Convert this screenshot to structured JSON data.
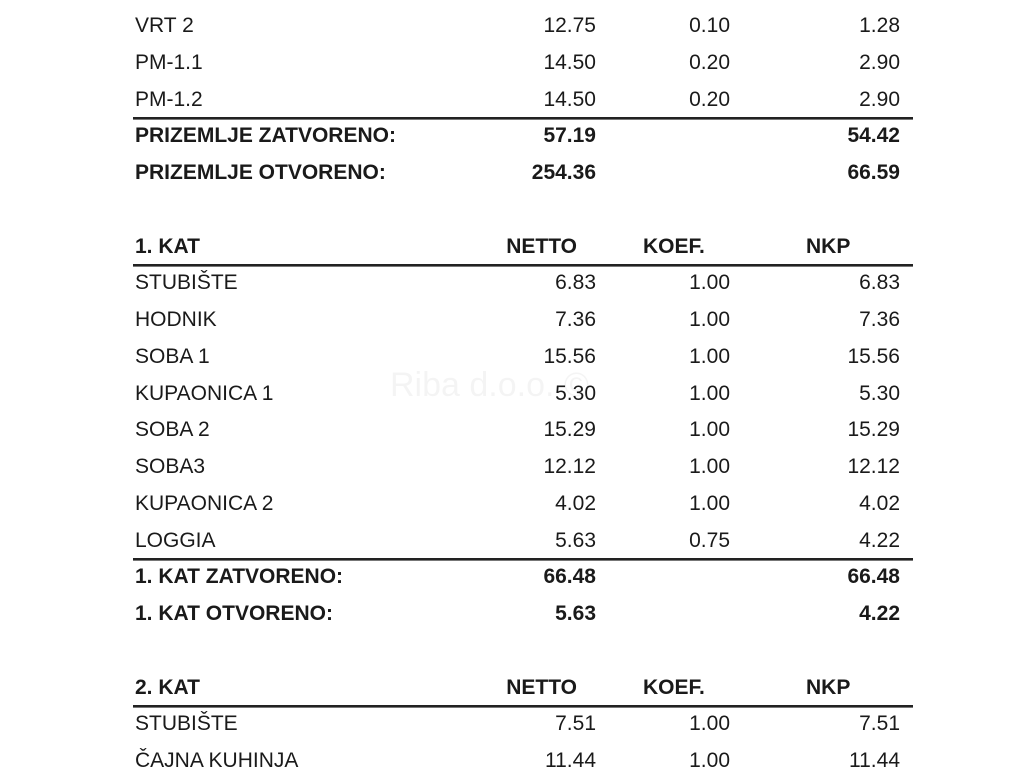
{
  "watermark": "Riba d.o.o. ©",
  "sections": [
    {
      "header": null,
      "rows": [
        {
          "name": "VRT 2",
          "netto": "12.75",
          "koef": "0.10",
          "nkp": "1.28"
        },
        {
          "name": "PM-1.1",
          "netto": "14.50",
          "koef": "0.20",
          "nkp": "2.90"
        },
        {
          "name": "PM-1.2",
          "netto": "14.50",
          "koef": "0.20",
          "nkp": "2.90"
        }
      ],
      "totals": [
        {
          "name": "PRIZEMLJE ZATVORENO:",
          "netto": "57.19",
          "nkp": "54.42"
        },
        {
          "name": "PRIZEMLJE OTVORENO:",
          "netto": "254.36",
          "nkp": "66.59"
        }
      ]
    },
    {
      "header": {
        "name": "1. KAT",
        "netto": "NETTO",
        "koef": "KOEF.",
        "nkp": "NKP"
      },
      "rows": [
        {
          "name": "STUBIŠTE",
          "netto": "6.83",
          "koef": "1.00",
          "nkp": "6.83"
        },
        {
          "name": "HODNIK",
          "netto": "7.36",
          "koef": "1.00",
          "nkp": "7.36"
        },
        {
          "name": "SOBA 1",
          "netto": "15.56",
          "koef": "1.00",
          "nkp": "15.56"
        },
        {
          "name": "KUPAONICA 1",
          "netto": "5.30",
          "koef": "1.00",
          "nkp": "5.30"
        },
        {
          "name": "SOBA 2",
          "netto": "15.29",
          "koef": "1.00",
          "nkp": "15.29"
        },
        {
          "name": "SOBA3",
          "netto": "12.12",
          "koef": "1.00",
          "nkp": "12.12"
        },
        {
          "name": "KUPAONICA 2",
          "netto": "4.02",
          "koef": "1.00",
          "nkp": "4.02"
        },
        {
          "name": "LOGGIA",
          "netto": "5.63",
          "koef": "0.75",
          "nkp": "4.22"
        }
      ],
      "totals": [
        {
          "name": "1. KAT ZATVORENO:",
          "netto": "66.48",
          "nkp": "66.48"
        },
        {
          "name": "1. KAT OTVORENO:",
          "netto": "5.63",
          "nkp": "4.22"
        }
      ]
    },
    {
      "header": {
        "name": "2. KAT",
        "netto": "NETTO",
        "koef": "KOEF.",
        "nkp": "NKP"
      },
      "rows": [
        {
          "name": "STUBIŠTE",
          "netto": "7.51",
          "koef": "1.00",
          "nkp": "7.51"
        },
        {
          "name": "ČAJNA KUHINJA",
          "netto": "11.44",
          "koef": "1.00",
          "nkp": "11.44"
        }
      ],
      "totals": []
    }
  ]
}
